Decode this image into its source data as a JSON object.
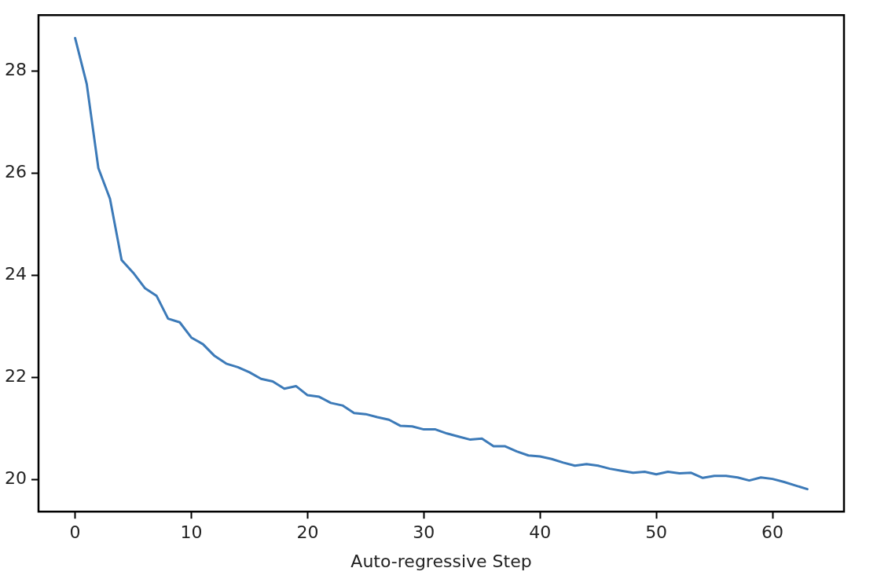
{
  "chart_data": {
    "type": "line",
    "xlabel": "Auto-regressive Step",
    "x": [
      0,
      1,
      2,
      3,
      4,
      5,
      6,
      7,
      8,
      9,
      10,
      11,
      12,
      13,
      14,
      15,
      16,
      17,
      18,
      19,
      20,
      21,
      22,
      23,
      24,
      25,
      26,
      27,
      28,
      29,
      30,
      31,
      32,
      33,
      34,
      35,
      36,
      37,
      38,
      39,
      40,
      41,
      42,
      43,
      44,
      45,
      46,
      47,
      48,
      49,
      50,
      51,
      52,
      53,
      54,
      55,
      56,
      57,
      58,
      59,
      60,
      61,
      62,
      63
    ],
    "series": [
      {
        "color": "#3c7ab8",
        "values": [
          28.65,
          27.75,
          26.1,
          25.5,
          24.3,
          24.05,
          23.75,
          23.6,
          23.15,
          23.08,
          22.78,
          22.65,
          22.42,
          22.27,
          22.2,
          22.1,
          21.97,
          21.92,
          21.78,
          21.83,
          21.65,
          21.62,
          21.5,
          21.45,
          21.3,
          21.28,
          21.22,
          21.17,
          21.05,
          21.04,
          20.98,
          20.98,
          20.9,
          20.84,
          20.78,
          20.8,
          20.65,
          20.65,
          20.55,
          20.47,
          20.45,
          20.4,
          20.33,
          20.27,
          20.3,
          20.27,
          20.21,
          20.17,
          20.13,
          20.15,
          20.1,
          20.15,
          20.12,
          20.13,
          20.03,
          20.07,
          20.07,
          20.04,
          19.98,
          20.04,
          20.01,
          19.95,
          19.88,
          19.81
        ]
      }
    ],
    "xlim": [
      -3.15,
      66.15
    ],
    "xticks": [
      0,
      10,
      20,
      30,
      40,
      50,
      60
    ],
    "ylim": [
      19.37,
      29.1
    ],
    "yticks": [
      20,
      22,
      24,
      26,
      28
    ],
    "grid": false,
    "legend": false,
    "marker": "none",
    "line_style": "solid"
  }
}
